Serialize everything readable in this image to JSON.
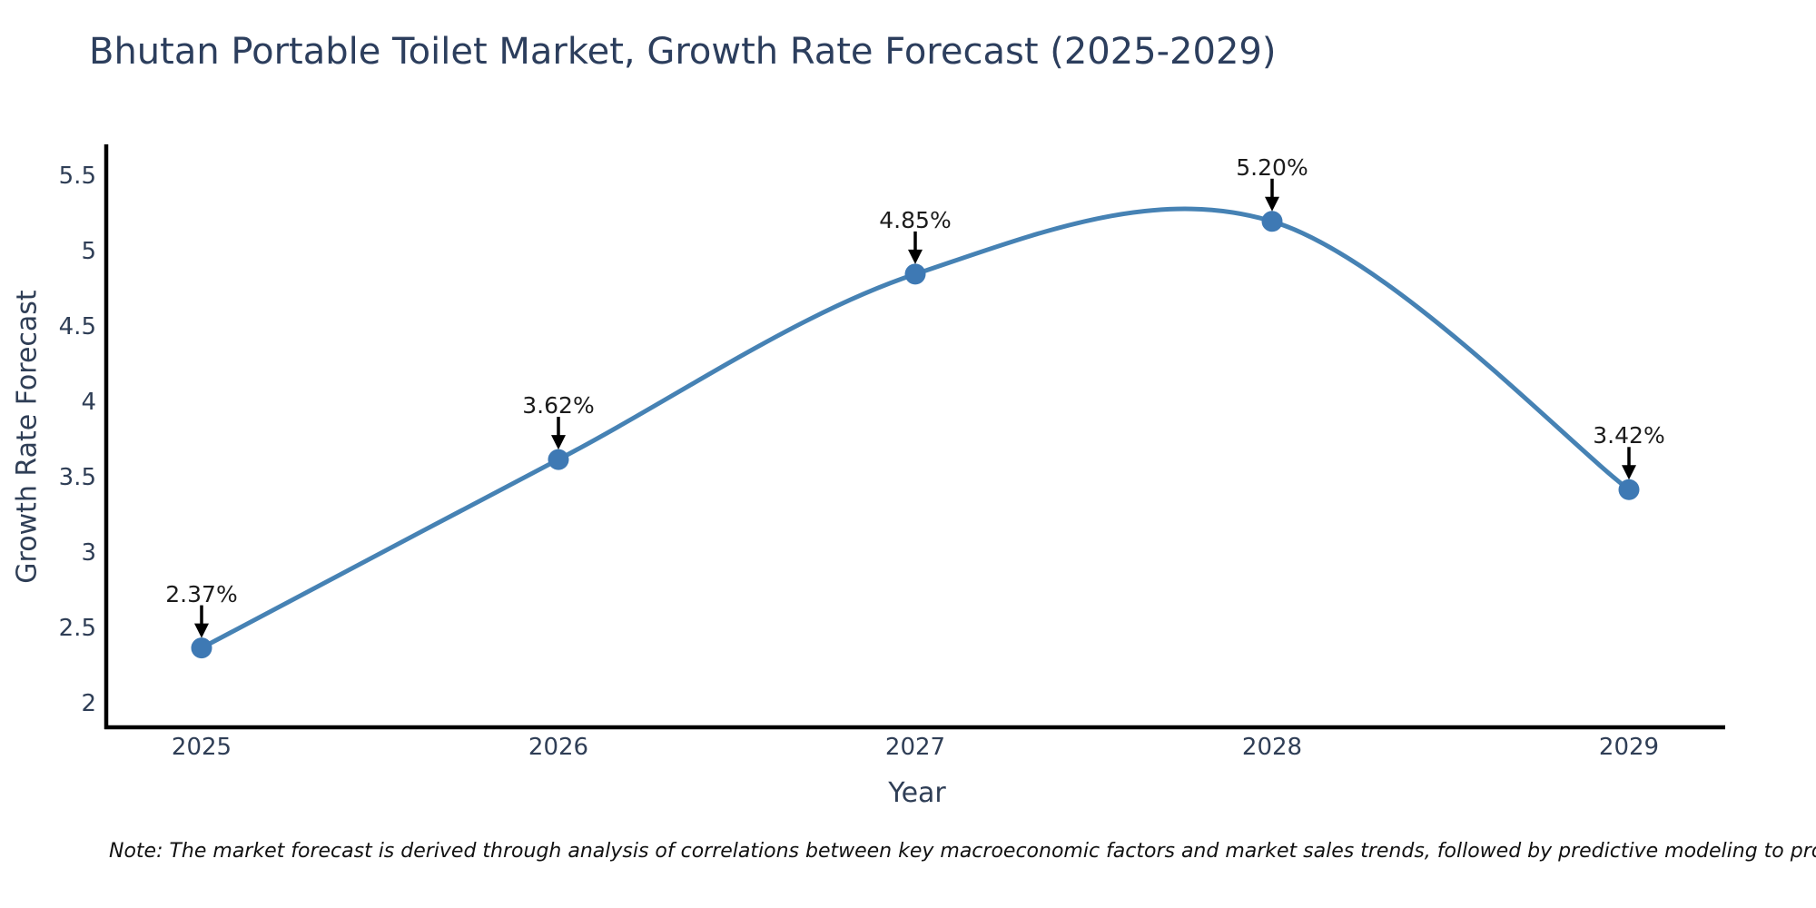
{
  "title": "Bhutan Portable Toilet Market, Growth Rate Forecast (2025-2029)",
  "note": "Note: The market forecast is derived through analysis of correlations between key macroeconomic factors and market sales trends, followed by predictive modeling to project future sales",
  "chart_data": {
    "type": "line",
    "title": "Bhutan Portable Toilet Market, Growth Rate Forecast (2025-2029)",
    "xlabel": "Year",
    "ylabel": "Growth Rate Forecast",
    "categories": [
      "2025",
      "2026",
      "2027",
      "2028",
      "2029"
    ],
    "values": [
      2.37,
      3.62,
      4.85,
      5.2,
      3.42
    ],
    "point_labels": [
      "2.37%",
      "3.62%",
      "4.85%",
      "5.20%",
      "3.42%"
    ],
    "y_ticks": [
      2,
      2.5,
      3,
      3.5,
      4,
      4.5,
      5,
      5.5
    ],
    "y_tick_labels": [
      "2",
      "2.5",
      "3",
      "3.5",
      "4",
      "4.5",
      "5",
      "5.5"
    ],
    "ylim": [
      1.84,
      5.72
    ],
    "line_shape": "spline",
    "grid": false,
    "legend": false,
    "line_color": "#4682b4",
    "marker_color": "#3e79b4",
    "annotation_arrow_color": "#000000",
    "axis_line_color": "#000000"
  }
}
